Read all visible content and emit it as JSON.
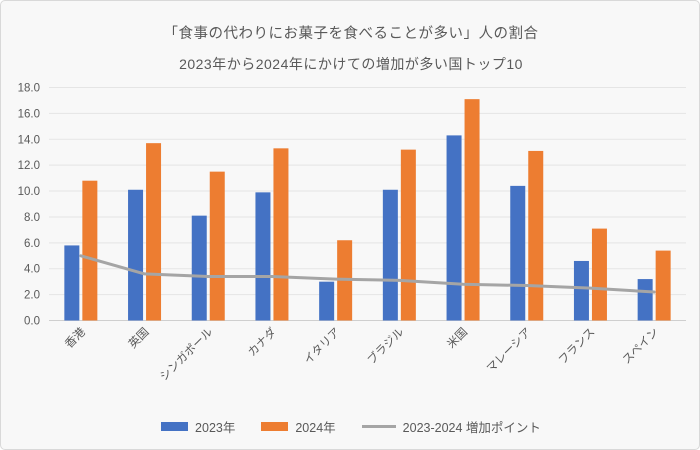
{
  "theme": {
    "background": "#f8f8f8",
    "border": "#d9d9d9",
    "text": "#595959",
    "gridline": "#e5e5e5",
    "axis_line": "#cfcfcf"
  },
  "chart_data": {
    "type": "bar",
    "title": "「食事の代わりにお菓子を食べることが多い」人の割合",
    "subtitle": "2023年から2024年にかけての増加が多い国トップ10",
    "categories": [
      "香港",
      "英国",
      "シンガポール",
      "カナダ",
      "イタリア",
      "ブラジル",
      "米国",
      "マレーシア",
      "フランス",
      "スペイン"
    ],
    "series": [
      {
        "name": "2023年",
        "type": "bar",
        "color": "#4472C4",
        "values": [
          5.8,
          10.1,
          8.1,
          9.9,
          3.0,
          10.1,
          14.3,
          10.4,
          4.6,
          3.2
        ]
      },
      {
        "name": "2024年",
        "type": "bar",
        "color": "#ED7D31",
        "values": [
          10.8,
          13.7,
          11.5,
          13.3,
          6.2,
          13.2,
          17.1,
          13.1,
          7.1,
          5.4
        ]
      },
      {
        "name": "2023-2024 増加ポイント",
        "type": "line",
        "color": "#A5A5A5",
        "values": [
          5.0,
          3.6,
          3.4,
          3.4,
          3.2,
          3.1,
          2.8,
          2.7,
          2.5,
          2.2
        ]
      }
    ],
    "xlabel": "",
    "ylabel": "",
    "ylim": [
      0,
      18
    ],
    "ytick_step": 2,
    "ytick_labels": [
      "0.0",
      "2.0",
      "4.0",
      "6.0",
      "8.0",
      "10.0",
      "12.0",
      "14.0",
      "16.0",
      "18.0"
    ],
    "grid": true,
    "legend_position": "bottom"
  }
}
